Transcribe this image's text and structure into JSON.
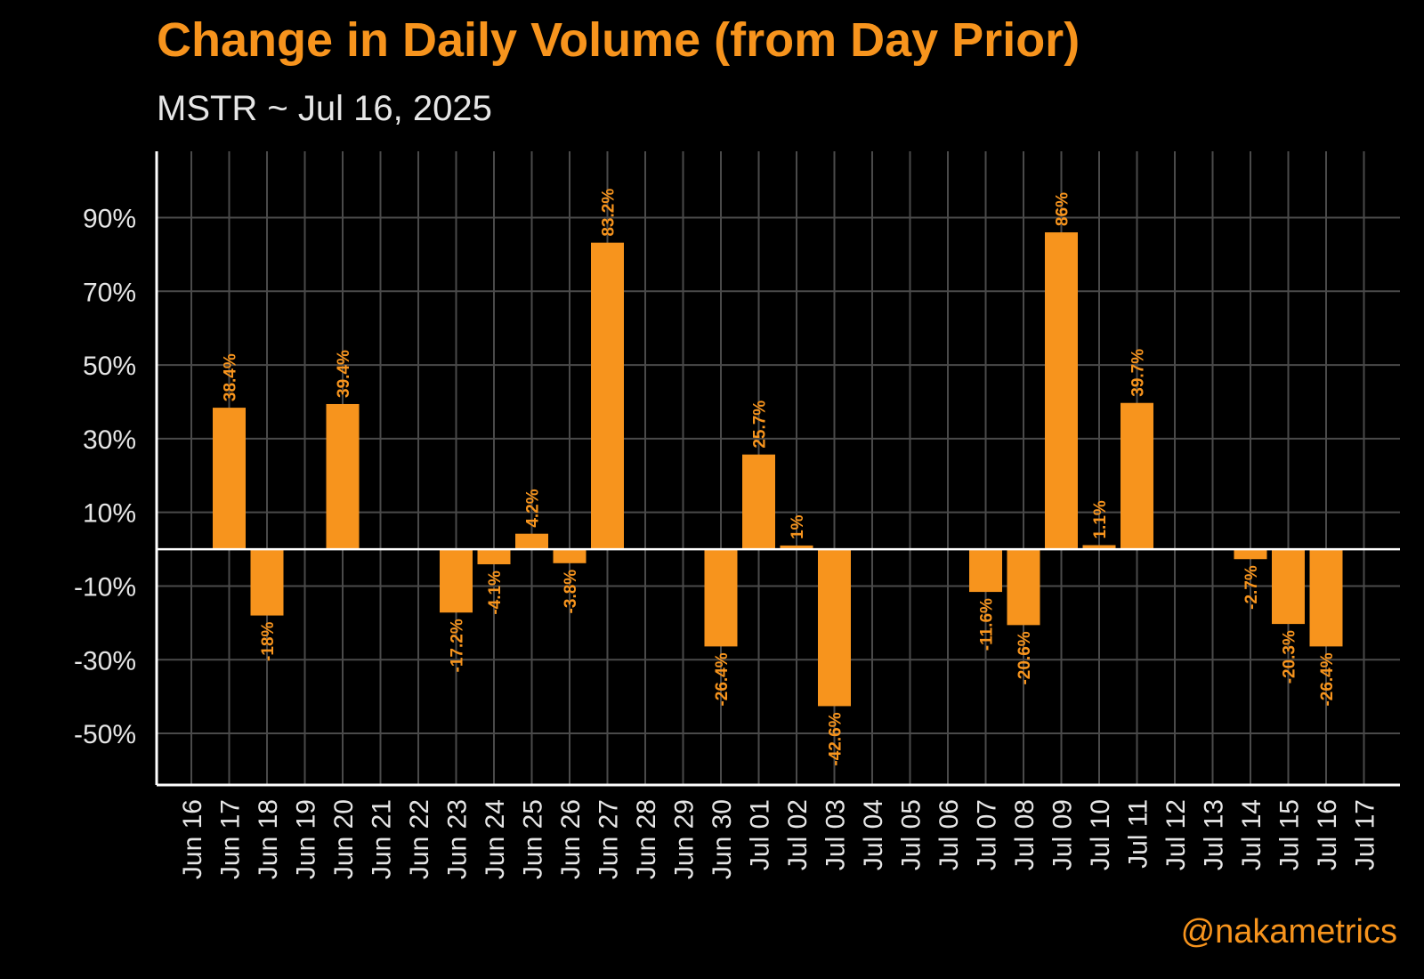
{
  "title": "Change in Daily Volume (from Day Prior)",
  "subtitle": "MSTR ~ Jul 16, 2025",
  "credit": "@nakametrics",
  "colors": {
    "background": "#000000",
    "bar": "#F7941D",
    "label": "#F7941D",
    "axis": "#FFFFFF",
    "grid_major": "#4A4A4A",
    "grid_minor": "#262626",
    "tick_text": "#E6E6E6"
  },
  "chart_data": {
    "type": "bar",
    "title": "Change in Daily Volume (from Day Prior)",
    "subtitle": "MSTR ~ Jul 16, 2025",
    "xlabel": "",
    "ylabel": "",
    "categories": [
      "Jun 16",
      "Jun 17",
      "Jun 18",
      "Jun 19",
      "Jun 20",
      "Jun 21",
      "Jun 22",
      "Jun 23",
      "Jun 24",
      "Jun 25",
      "Jun 26",
      "Jun 27",
      "Jun 28",
      "Jun 29",
      "Jun 30",
      "Jul 01",
      "Jul 02",
      "Jul 03",
      "Jul 04",
      "Jul 05",
      "Jul 06",
      "Jul 07",
      "Jul 08",
      "Jul 09",
      "Jul 10",
      "Jul 11",
      "Jul 12",
      "Jul 13",
      "Jul 14",
      "Jul 15",
      "Jul 16",
      "Jul 17"
    ],
    "values": [
      null,
      38.4,
      -18,
      null,
      39.4,
      null,
      null,
      -17.2,
      -4.1,
      4.2,
      -3.8,
      83.2,
      null,
      null,
      -26.4,
      25.7,
      1,
      -42.6,
      null,
      null,
      null,
      -11.6,
      -20.6,
      86,
      1.1,
      39.7,
      null,
      null,
      -2.7,
      -20.3,
      -26.4,
      null
    ],
    "labels": [
      "",
      "38.4%",
      "-18%",
      "",
      "39.4%",
      "",
      "",
      "-17.2%",
      "-4.1%",
      "4.2%",
      "-3.8%",
      "83.2%",
      "",
      "",
      "-26.4%",
      "25.7%",
      "1%",
      "-42.6%",
      "",
      "",
      "",
      "-11.6%",
      "-20.6%",
      "86%",
      "1.1%",
      "39.7%",
      "",
      "",
      "-2.7%",
      "-20.3%",
      "-26.4%",
      ""
    ],
    "yticks": [
      -50,
      -30,
      -10,
      10,
      30,
      50,
      70,
      90
    ],
    "ytick_labels": [
      "-50%",
      "-30%",
      "-10%",
      "10%",
      "30%",
      "50%",
      "70%",
      "90%"
    ],
    "ylim": [
      -64,
      108
    ],
    "grid": true,
    "legend": "none"
  }
}
